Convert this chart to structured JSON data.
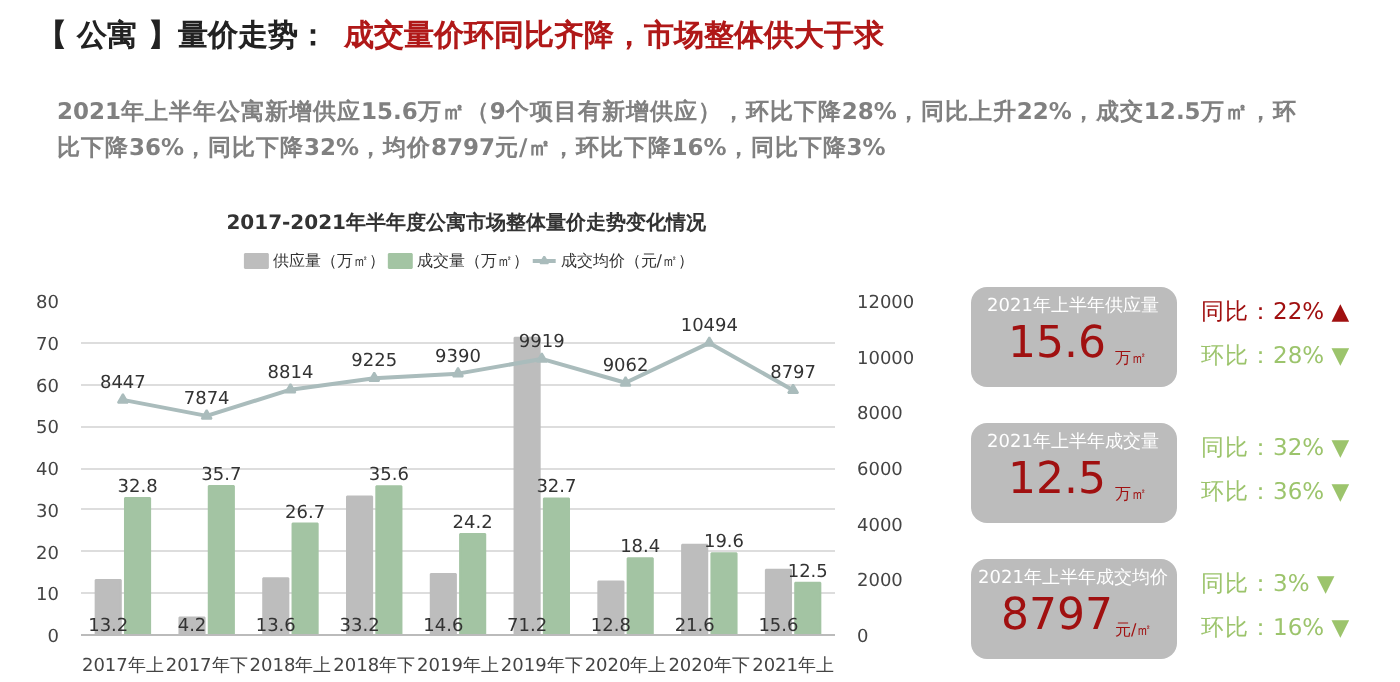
{
  "chart_data": [
    {
      "type": "other",
      "title": "【 公寓 】量价走势：",
      "subtitle": "成交量价环同比齐降，市场整体供大于求",
      "colors": [
        "#222222",
        "#b01818",
        "#808080"
      ],
      "annotations": [
        "2021年上半年公寓新增供应15.6万㎡（9个项目有新增供应），环比下降28%，同比上升22%，成交12.5万㎡，环比下降36%，同比下降32%，均价8797元/㎡，环比下降16%，同比下降3%"
      ]
    },
    {
      "type": "bar",
      "title": "2017-2021年半年度公寓市场整体量价走势变化情况",
      "categories": [
        "2017年上",
        "2017年下",
        "2018年上",
        "2018年下",
        "2019年上",
        "2019年下",
        "2020年上",
        "2020年下",
        "2021年上"
      ],
      "series": [
        {
          "name": "供应量（万㎡）",
          "color": "#bdbdbd",
          "values": [
            13.2,
            4.2,
            13.6,
            33.2,
            14.6,
            71.2,
            12.8,
            21.6,
            15.6
          ]
        },
        {
          "name": "成交量（万㎡）",
          "color": "#a3c4a3",
          "values": [
            32.8,
            35.7,
            26.7,
            35.6,
            24.2,
            32.7,
            18.4,
            19.6,
            12.5
          ]
        },
        {
          "name": "成交均价（元/㎡）",
          "type": "line",
          "axis": "y2",
          "color": "#aabcbc",
          "marker": "triangle",
          "values": [
            8447,
            7874,
            8814,
            9225,
            9390,
            9919,
            9062,
            10494,
            8797
          ]
        }
      ],
      "ylim": [
        0,
        80
      ],
      "yticks": [
        0,
        10,
        20,
        30,
        40,
        50,
        60,
        70,
        80
      ],
      "y2lim": [
        0,
        12000
      ],
      "y2ticks": [
        0,
        2000,
        4000,
        6000,
        8000,
        10000,
        12000
      ],
      "grid": "y",
      "legend": "top",
      "data_labels": true
    },
    {
      "type": "other",
      "colors": [
        "#a01010",
        "#9cc46c",
        "#9cc46c",
        "#9cc46c",
        "#9cc46c",
        "#9cc46c"
      ],
      "annotations": [
        "2021年上半年供应量",
        "15.6",
        "万㎡",
        "同比：22% ▲",
        "环比：28% ▼",
        "2021年上半年成交量",
        "12.5",
        "万㎡",
        "同比：32% ▼",
        "环比：36% ▼",
        "2021年上半年成交均价",
        "8797",
        "元/㎡",
        "同比：3% ▼",
        "环比：16% ▼"
      ]
    }
  ]
}
